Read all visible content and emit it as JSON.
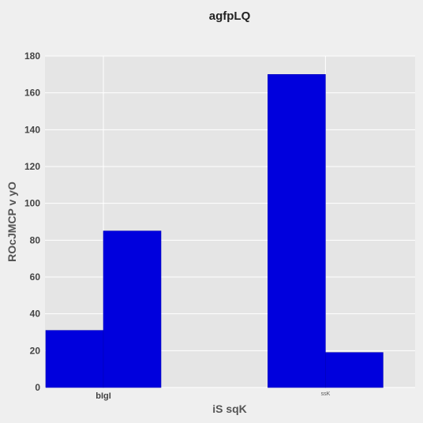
{
  "chart_data": {
    "type": "bar",
    "title": "agfpLQ",
    "xlabel": "iS sqK",
    "ylabel": "ROcJMCP v  yO",
    "categories": [
      "bIgI",
      "ssK"
    ],
    "series": [
      {
        "values": [
          31,
          170
        ]
      },
      {
        "values": [
          85,
          19
        ]
      }
    ],
    "ylim": [
      0,
      180
    ],
    "yticks": [
      0,
      20,
      40,
      60,
      80,
      100,
      120,
      140,
      160,
      180
    ],
    "grid": true,
    "colors": {
      "bar": "#0000dd",
      "plot_background": "#e5e5e5",
      "page_background": "#efefef",
      "grid": "#ffffff"
    }
  }
}
